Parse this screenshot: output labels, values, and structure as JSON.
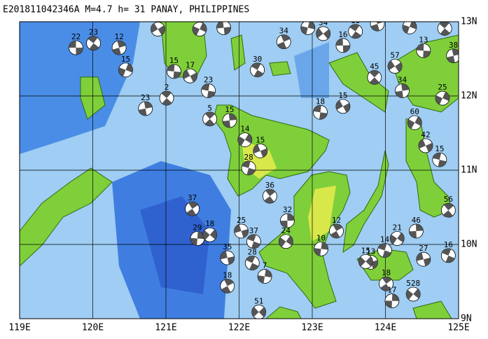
{
  "title": "E201811042346A M=4.7 h= 31 PANAY, PHILIPPINES",
  "map": {
    "lonlim": [
      119,
      125
    ],
    "latlim": [
      9,
      13
    ],
    "lonticks": [
      {
        "value": 119,
        "label": "119E"
      },
      {
        "value": 120,
        "label": "120E"
      },
      {
        "value": 121,
        "label": "121E"
      },
      {
        "value": 122,
        "label": "122E"
      },
      {
        "value": 123,
        "label": "123E"
      },
      {
        "value": 124,
        "label": "124E"
      },
      {
        "value": 125,
        "label": "125E"
      }
    ],
    "latticks": [
      {
        "value": 9,
        "label": "9N"
      },
      {
        "value": 10,
        "label": "10N"
      },
      {
        "value": 11,
        "label": "11N"
      },
      {
        "value": 12,
        "label": "12N"
      },
      {
        "value": 13,
        "label": "13N"
      }
    ],
    "events": [
      {
        "lon": 119.77,
        "lat": 12.65,
        "depth": "22"
      },
      {
        "lon": 120.01,
        "lat": 12.71,
        "depth": "23"
      },
      {
        "lon": 120.36,
        "lat": 12.65,
        "depth": "12"
      },
      {
        "lon": 120.45,
        "lat": 12.35,
        "depth": "15"
      },
      {
        "lon": 120.89,
        "lat": 12.9,
        "depth": "72"
      },
      {
        "lon": 121.11,
        "lat": 12.33,
        "depth": "15"
      },
      {
        "lon": 121.01,
        "lat": 11.97,
        "depth": "2"
      },
      {
        "lon": 120.72,
        "lat": 11.83,
        "depth": "23"
      },
      {
        "lon": 121.46,
        "lat": 12.9,
        "depth": "33"
      },
      {
        "lon": 121.33,
        "lat": 12.27,
        "depth": "17"
      },
      {
        "lon": 121.58,
        "lat": 12.07,
        "depth": "23"
      },
      {
        "lon": 121.6,
        "lat": 11.69,
        "depth": "5"
      },
      {
        "lon": 121.87,
        "lat": 11.67,
        "depth": "15"
      },
      {
        "lon": 122.08,
        "lat": 11.41,
        "depth": "14"
      },
      {
        "lon": 122.29,
        "lat": 11.26,
        "depth": "15"
      },
      {
        "lon": 122.13,
        "lat": 11.03,
        "depth": "28"
      },
      {
        "lon": 122.42,
        "lat": 10.65,
        "depth": "36"
      },
      {
        "lon": 122.66,
        "lat": 10.32,
        "depth": "32"
      },
      {
        "lon": 122.64,
        "lat": 10.04,
        "depth": "24"
      },
      {
        "lon": 122.03,
        "lat": 10.18,
        "depth": "25"
      },
      {
        "lon": 122.2,
        "lat": 10.04,
        "depth": "37"
      },
      {
        "lon": 121.36,
        "lat": 10.48,
        "depth": "37"
      },
      {
        "lon": 121.43,
        "lat": 10.08,
        "depth": "29"
      },
      {
        "lon": 121.6,
        "lat": 10.13,
        "depth": "18"
      },
      {
        "lon": 121.84,
        "lat": 9.82,
        "depth": "35"
      },
      {
        "lon": 122.18,
        "lat": 9.75,
        "depth": "28"
      },
      {
        "lon": 121.84,
        "lat": 9.44,
        "depth": "18"
      },
      {
        "lon": 122.35,
        "lat": 9.57,
        "depth": "7"
      },
      {
        "lon": 122.27,
        "lat": 9.09,
        "depth": "51"
      },
      {
        "lon": 121.79,
        "lat": 12.92,
        "depth": "40"
      },
      {
        "lon": 122.25,
        "lat": 12.35,
        "depth": "30"
      },
      {
        "lon": 122.61,
        "lat": 12.73,
        "depth": "34"
      },
      {
        "lon": 122.94,
        "lat": 12.92,
        "depth": "19"
      },
      {
        "lon": 123.15,
        "lat": 12.84,
        "depth": "34"
      },
      {
        "lon": 123.42,
        "lat": 12.68,
        "depth": "16"
      },
      {
        "lon": 123.59,
        "lat": 12.87,
        "depth": "18"
      },
      {
        "lon": 123.89,
        "lat": 12.97,
        "depth": "114"
      },
      {
        "lon": 124.33,
        "lat": 12.93,
        "depth": "112"
      },
      {
        "lon": 124.13,
        "lat": 12.4,
        "depth": "57"
      },
      {
        "lon": 124.52,
        "lat": 12.61,
        "depth": "13"
      },
      {
        "lon": 124.81,
        "lat": 12.91,
        "depth": "268"
      },
      {
        "lon": 124.93,
        "lat": 12.54,
        "depth": "38"
      },
      {
        "lon": 124.78,
        "lat": 11.97,
        "depth": "25"
      },
      {
        "lon": 123.42,
        "lat": 11.86,
        "depth": "15"
      },
      {
        "lon": 123.11,
        "lat": 11.78,
        "depth": "18"
      },
      {
        "lon": 123.85,
        "lat": 12.25,
        "depth": "45"
      },
      {
        "lon": 124.23,
        "lat": 12.07,
        "depth": "34"
      },
      {
        "lon": 124.4,
        "lat": 11.64,
        "depth": "60"
      },
      {
        "lon": 124.55,
        "lat": 11.33,
        "depth": "42"
      },
      {
        "lon": 124.74,
        "lat": 11.14,
        "depth": "15"
      },
      {
        "lon": 124.86,
        "lat": 10.46,
        "depth": "56"
      },
      {
        "lon": 124.42,
        "lat": 10.18,
        "depth": "46"
      },
      {
        "lon": 124.16,
        "lat": 10.08,
        "depth": "21"
      },
      {
        "lon": 123.8,
        "lat": 9.76,
        "depth": "13"
      },
      {
        "lon": 123.99,
        "lat": 9.92,
        "depth": "14"
      },
      {
        "lon": 124.01,
        "lat": 9.47,
        "depth": "18"
      },
      {
        "lon": 124.09,
        "lat": 9.24,
        "depth": "17"
      },
      {
        "lon": 124.38,
        "lat": 9.33,
        "depth": "528"
      },
      {
        "lon": 124.52,
        "lat": 9.8,
        "depth": "27"
      },
      {
        "lon": 124.86,
        "lat": 9.85,
        "depth": "16"
      },
      {
        "lon": 123.33,
        "lat": 10.18,
        "depth": "12"
      },
      {
        "lon": 123.12,
        "lat": 9.94,
        "depth": "10"
      },
      {
        "lon": 123.73,
        "lat": 9.77,
        "depth": "15"
      }
    ]
  }
}
